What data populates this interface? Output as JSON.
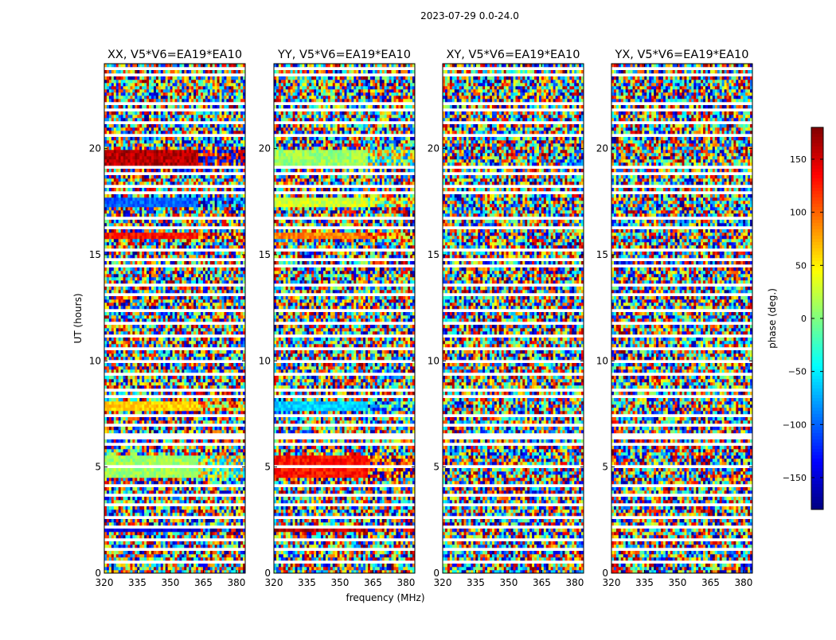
{
  "suptitle": "2023-07-29 0.0-24.0",
  "chart_data": {
    "type": "heatmap",
    "suptitle": "2023-07-29 0.0-24.0",
    "xlabel": "frequency (MHz)",
    "ylabel": "UT (hours)",
    "xlim": [
      320,
      384
    ],
    "ylim": [
      0,
      24
    ],
    "xticks": [
      320,
      335,
      350,
      365,
      380
    ],
    "yticks": [
      0,
      5,
      10,
      15,
      20
    ],
    "colorbar": {
      "label": "phase (deg.)",
      "range": [
        -180,
        180
      ],
      "ticks": [
        150,
        100,
        50,
        0,
        -50,
        -100,
        -150
      ],
      "tick_labels": [
        "150",
        "100",
        "50",
        "0",
        "−50",
        "−100",
        "−150"
      ],
      "colormap": "jet"
    },
    "panels": [
      {
        "title": "XX, V5*V6=EA19*EA10",
        "coherent_bands": [
          [
            19.0,
            19.9,
            160
          ],
          [
            17.2,
            17.7,
            -100
          ],
          [
            15.7,
            16.1,
            130
          ],
          [
            7.7,
            8.1,
            60
          ],
          [
            4.5,
            5.5,
            10
          ],
          [
            1.9,
            2.1,
            -150
          ]
        ]
      },
      {
        "title": "YY, V5*V6=EA19*EA10",
        "coherent_bands": [
          [
            19.0,
            19.9,
            10
          ],
          [
            17.2,
            17.7,
            30
          ],
          [
            15.7,
            16.1,
            90
          ],
          [
            7.7,
            8.1,
            -60
          ],
          [
            4.5,
            5.5,
            130
          ],
          [
            1.9,
            2.1,
            160
          ]
        ]
      },
      {
        "title": "XY, V5*V6=EA19*EA10",
        "coherent_bands": []
      },
      {
        "title": "YX, V5*V6=EA19*EA10",
        "coherent_bands": []
      }
    ],
    "flagged_rows_ut": [
      0.5,
      1.2,
      1.6,
      2.2,
      2.6,
      3.3,
      3.6,
      4.1,
      5.0,
      6.0,
      6.3,
      6.6,
      7.0,
      7.4,
      8.3,
      8.6,
      9.3,
      9.9,
      10.5,
      11.2,
      11.8,
      12.4,
      13.1,
      13.6,
      14.4,
      14.8,
      15.2,
      16.3,
      16.7,
      17.9,
      18.2,
      18.8,
      19.2,
      20.6,
      21.2,
      21.8,
      22.1,
      23.4,
      23.8
    ]
  }
}
